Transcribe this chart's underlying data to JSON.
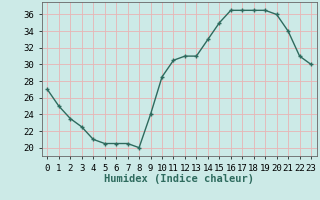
{
  "x": [
    0,
    1,
    2,
    3,
    4,
    5,
    6,
    7,
    8,
    9,
    10,
    11,
    12,
    13,
    14,
    15,
    16,
    17,
    18,
    19,
    20,
    21,
    22,
    23
  ],
  "y": [
    27,
    25,
    23.5,
    22.5,
    21,
    20.5,
    20.5,
    20.5,
    20,
    24,
    28.5,
    30.5,
    31,
    31,
    33,
    35,
    36.5,
    36.5,
    36.5,
    36.5,
    36,
    34,
    31,
    30
  ],
  "line_color": "#2e6b5e",
  "marker": "+",
  "marker_size": 3.5,
  "marker_lw": 1.0,
  "bg_color": "#cceae7",
  "grid_color": "#e8b4b4",
  "xlabel": "Humidex (Indice chaleur)",
  "ylim": [
    19,
    37.5
  ],
  "xlim": [
    -0.5,
    23.5
  ],
  "yticks": [
    20,
    22,
    24,
    26,
    28,
    30,
    32,
    34,
    36
  ],
  "xtick_labels": [
    "0",
    "1",
    "2",
    "3",
    "4",
    "5",
    "6",
    "7",
    "8",
    "9",
    "10",
    "11",
    "12",
    "13",
    "14",
    "15",
    "16",
    "17",
    "18",
    "19",
    "20",
    "21",
    "22",
    "23"
  ],
  "label_fontsize": 7.5,
  "tick_fontsize": 6.5,
  "line_width": 1.0
}
